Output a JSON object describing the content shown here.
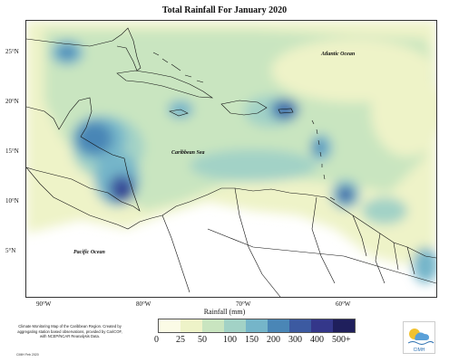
{
  "title": "Total Rainfall For January 2020",
  "y_axis": [
    "25°N",
    "20°N",
    "15°N",
    "10°N",
    "5°N"
  ],
  "x_axis": [
    "90°W",
    "80°W",
    "70°W",
    "60°W"
  ],
  "labels": {
    "atlantic": "Atlantic Ocean",
    "caribbean": "Caribbean Sea",
    "pacific": "Pacific Ocean"
  },
  "legend": {
    "title": "Rainfall (mm)",
    "ticks": [
      "0",
      "25",
      "50",
      "100",
      "150",
      "200",
      "300",
      "400",
      "500+"
    ],
    "colors": [
      "#fbfbe6",
      "#eef3c8",
      "#c9e5c0",
      "#a2d2c6",
      "#75b5c9",
      "#4a86b6",
      "#3c5aa1",
      "#34378a",
      "#1f1f5c"
    ]
  },
  "footnote": "Climate Monitoring Map of the Caribbean Region. Created by aggregating station based observations, provided by CariCOF, with NCEP/NCAR Reanalysis Data.",
  "credit": "CIMH Feb 2020",
  "logo_text": "CIMH"
}
